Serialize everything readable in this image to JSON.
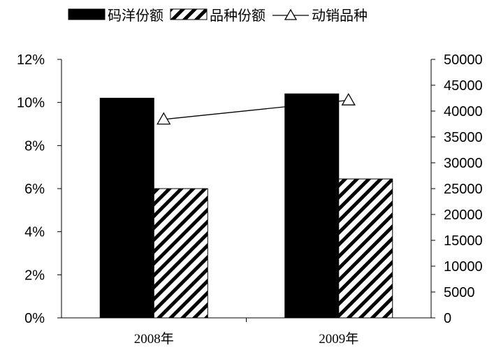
{
  "chart_data": {
    "type": "bar",
    "categories": [
      "2008年",
      "2009年"
    ],
    "series": [
      {
        "name": "码洋份额",
        "kind": "bar",
        "axis": "left",
        "values": [
          10.2,
          10.4
        ],
        "color": "#000000",
        "pattern": "solid"
      },
      {
        "name": "品种份额",
        "kind": "bar",
        "axis": "left",
        "values": [
          6.0,
          6.45
        ],
        "color": "#000000",
        "pattern": "diagonal-hatch"
      },
      {
        "name": "动销品种",
        "kind": "line",
        "axis": "right",
        "values": [
          38400,
          42100
        ],
        "color": "#000000",
        "marker": "triangle-open"
      }
    ],
    "left_axis": {
      "min": 0,
      "max": 12,
      "step": 2,
      "ticks": [
        "0%",
        "2%",
        "4%",
        "6%",
        "8%",
        "10%",
        "12%"
      ]
    },
    "right_axis": {
      "min": 0,
      "max": 50000,
      "step": 5000,
      "ticks": [
        "0",
        "5000",
        "10000",
        "15000",
        "20000",
        "25000",
        "30000",
        "35000",
        "40000",
        "45000",
        "50000"
      ]
    },
    "grid": false,
    "legend_position": "top"
  }
}
